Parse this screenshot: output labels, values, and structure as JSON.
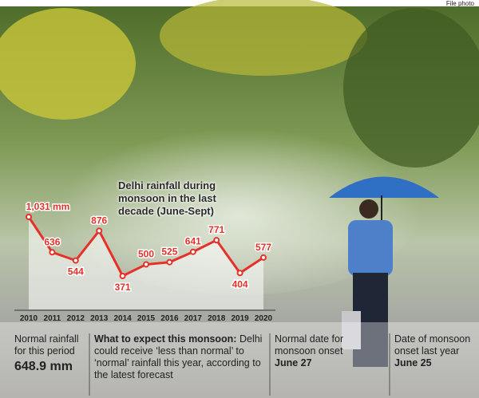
{
  "photo_credit": "File photo",
  "chart_data": {
    "type": "line",
    "title": "Delhi rainfall during monsoon in the last decade (June-Sept)",
    "x": [
      2010,
      2011,
      2012,
      2013,
      2014,
      2015,
      2016,
      2017,
      2018,
      2019,
      2020
    ],
    "values": [
      1031,
      636,
      544,
      876,
      371,
      500,
      525,
      641,
      771,
      404,
      577
    ],
    "value_labels": [
      "1,031 mm",
      "636",
      "544",
      "876",
      "371",
      "500",
      "525",
      "641",
      "771",
      "404",
      "577"
    ],
    "color": "#e5312a"
  },
  "info_panels": [
    {
      "label": "Normal rainfall for this period",
      "value": "648.9 mm"
    },
    {
      "heading": "What to expect this monsoon:",
      "text": "Delhi could receive ‘less than normal’ to ‘normal’ rainfall this year, according to the latest forecast"
    },
    {
      "label": "Normal date for monsoon onset",
      "value": "June 27"
    },
    {
      "label": "Date of monsoon onset last year",
      "value": "June 25"
    }
  ]
}
